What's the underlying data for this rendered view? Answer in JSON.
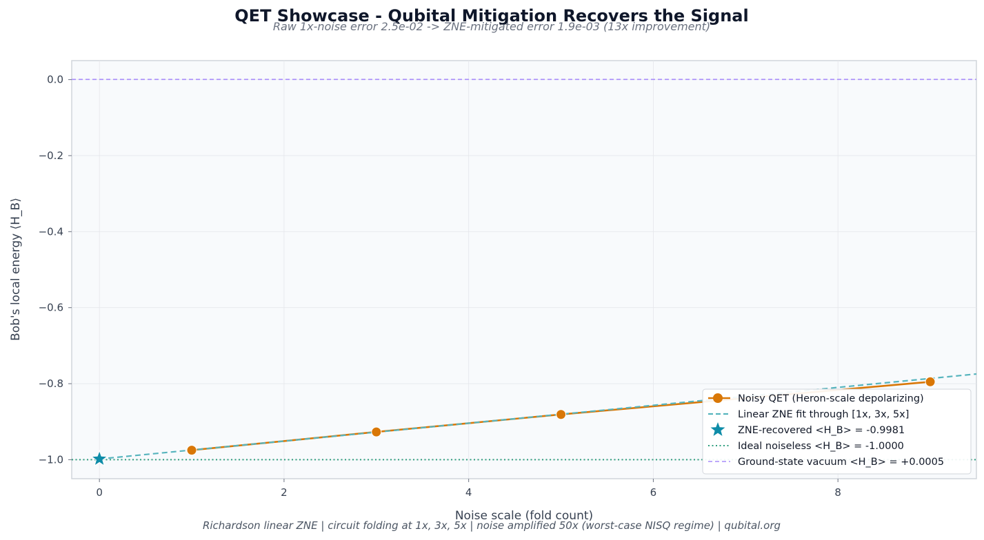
{
  "chart_data": {
    "type": "line",
    "title": "QET Showcase - Qubital Mitigation Recovers the Signal",
    "subtitle": "Raw 1x-noise error 2.5e-02  ->  ZNE-mitigated error 1.9e-03  (13x improvement)",
    "footer": "Richardson linear ZNE  |  circuit folding at 1x, 3x, 5x  |  noise amplified 50x (worst-case NISQ regime)  |  qubital.org",
    "xlabel": "Noise scale (fold count)",
    "ylabel": "Bob's local energy  ⟨H_B⟩",
    "xlim": [
      -0.3,
      9.5
    ],
    "ylim": [
      -1.05,
      0.05
    ],
    "xticks": [
      0,
      2,
      4,
      6,
      8
    ],
    "xtick_labels": [
      "0",
      "2",
      "4",
      "6",
      "8"
    ],
    "yticks": [
      0.0,
      -0.2,
      -0.4,
      -0.6,
      -0.8,
      -1.0
    ],
    "ytick_labels": [
      "0.0",
      "−0.2",
      "−0.4",
      "−0.6",
      "−0.8",
      "−1.0"
    ],
    "grid": true,
    "legend_position": "lower-right",
    "series": [
      {
        "name": "Noisy QET (Heron-scale depolarizing)",
        "style": "line-marker",
        "color": "#d97706",
        "x": [
          1,
          3,
          5,
          9
        ],
        "y": [
          -0.975,
          -0.927,
          -0.881,
          -0.795
        ]
      },
      {
        "name": "Linear ZNE fit through [1x, 3x, 5x]",
        "style": "dashed",
        "color": "#56b4bd",
        "x": [
          0,
          9.5
        ],
        "y": [
          -0.9981,
          -0.7745
        ]
      },
      {
        "name": "ZNE-recovered  <H_B> = -0.9981",
        "style": "star",
        "color": "#0e8ca8",
        "x": [
          0
        ],
        "y": [
          -0.9981
        ]
      },
      {
        "name": "Ideal noiseless  <H_B> = -1.0000",
        "style": "dotted-hline",
        "color": "#2e9e7e",
        "y": -1.0
      },
      {
        "name": "Ground-state vacuum  <H_B> = +0.0005",
        "style": "dashed-hline",
        "color": "#a78bfa",
        "y": 0.0005
      }
    ]
  }
}
